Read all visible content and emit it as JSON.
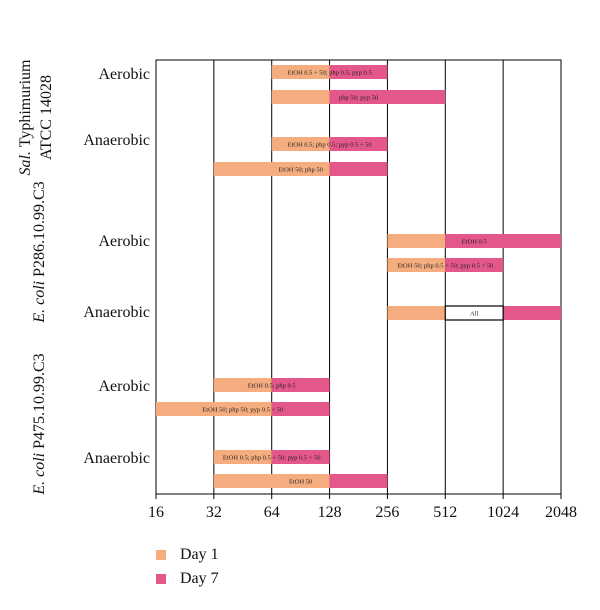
{
  "chart_data": {
    "type": "bar",
    "x_scale": "log2",
    "x_ticks": [
      "16",
      "32",
      "64",
      "128",
      "256",
      "512",
      "1024",
      "2048"
    ],
    "groups": [
      {
        "strain_prefix": "Sal.",
        "strain_rest": "Typhimurium",
        "strain_line2": "ATCC 14028",
        "conditions": [
          {
            "label": "Aerobic",
            "bars": [
              {
                "day1": [
                  64,
                  128
                ],
                "day7": [
                  128,
                  256
                ],
                "text": "EtOH 0.5 + 50; php 0.5; pyp 0.5"
              },
              {
                "day1": [
                  64,
                  128
                ],
                "day7": [
                  128,
                  512
                ],
                "text": "php 50; pyp 50"
              }
            ]
          },
          {
            "label": "Anaerobic",
            "bars": [
              {
                "day1": [
                  64,
                  128
                ],
                "day7": [
                  128,
                  256
                ],
                "text": "EtOH 0.5; php 0.5; pyp 0.5 + 50"
              },
              {
                "day1": [
                  32,
                  128
                ],
                "day7": [
                  128,
                  256
                ],
                "text": "EtOH 50; php 50"
              }
            ]
          }
        ]
      },
      {
        "strain_prefix": "E. coli",
        "strain_rest": "P286.10.99.C3",
        "conditions": [
          {
            "label": "Aerobic",
            "bars": [
              {
                "day1": [
                  256,
                  512
                ],
                "day7": [
                  512,
                  2048
                ],
                "text": "EtOH 0.5"
              },
              {
                "day1": [
                  256,
                  512
                ],
                "day7": [
                  512,
                  1024
                ],
                "text": "EtOH 50; php 0.5 + 50; pyp 0.5 + 50"
              }
            ]
          },
          {
            "label": "Anaerobic",
            "bars": [
              {
                "day1": [
                  256,
                  512
                ],
                "day7": [
                  1024,
                  2048
                ],
                "boxed": [
                  512,
                  1024
                ],
                "text": "All"
              }
            ]
          }
        ]
      },
      {
        "strain_prefix": "E. coli",
        "strain_rest": "P475.10.99.C3",
        "conditions": [
          {
            "label": "Aerobic",
            "bars": [
              {
                "day1": [
                  32,
                  64
                ],
                "day7": [
                  64,
                  128
                ],
                "text": "EtOH 0.5; php 0.5"
              },
              {
                "day1": [
                  16,
                  64
                ],
                "day7": [
                  64,
                  128
                ],
                "text": "EtOH 50; php 50; pyp 0.5 + 50"
              }
            ]
          },
          {
            "label": "Anaerobic",
            "bars": [
              {
                "day1": [
                  32,
                  64
                ],
                "day7": [
                  64,
                  128
                ],
                "text": "EtOH 0.5; php 0.5 + 50; pyp 0.5 + 50"
              },
              {
                "day1": [
                  32,
                  128
                ],
                "day7": [
                  128,
                  256
                ],
                "text": "EtOH 50"
              }
            ]
          }
        ]
      }
    ],
    "legend": [
      {
        "label": "Day 1",
        "color": "#f5ad7f"
      },
      {
        "label": "Day 7",
        "color": "#e4578b"
      }
    ]
  }
}
